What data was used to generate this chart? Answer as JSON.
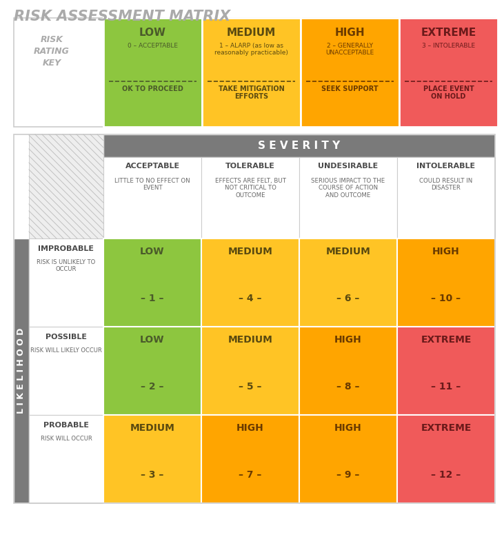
{
  "title": "RISK ASSESSMENT MATRIX",
  "title_color": "#aaaaaa",
  "bg_color": "#ffffff",
  "fig_width": 7.31,
  "fig_height": 7.82,
  "rating_key": {
    "labels": [
      "LOW",
      "MEDIUM",
      "HIGH",
      "EXTREME"
    ],
    "subtitles": [
      "0 – ACCEPTABLE",
      "1 – ALARP (as low as\nreasonably practicable)",
      "2 – GENERALLY\nUNACCEPTABLE",
      "3 – INTOLERABLE"
    ],
    "actions": [
      "OK TO PROCEED",
      "TAKE MITIGATION\nEFFORTS",
      "SEEK SUPPORT",
      "PLACE EVENT\nON HOLD"
    ],
    "colors": [
      "#8DC63F",
      "#FFC425",
      "#FFA500",
      "#F05A5A"
    ],
    "text_colors": [
      "#4a5a2a",
      "#5a4a10",
      "#6a3a00",
      "#6a1a1a"
    ]
  },
  "severity_cols": [
    "ACCEPTABLE",
    "TOLERABLE",
    "UNDESIRABLE",
    "INTOLERABLE"
  ],
  "severity_subtitles": [
    "LITTLE TO NO EFFECT ON\nEVENT",
    "EFFECTS ARE FELT, BUT\nNOT CRITICAL TO\nOUTCOME",
    "SERIOUS IMPACT TO THE\nCOURSE OF ACTION\nAND OUTCOME",
    "COULD RESULT IN\nDISASTER"
  ],
  "likelihood_rows": [
    {
      "label": "IMPROBABLE",
      "sublabel": "RISK IS UNLIKELY TO\nOCCUR"
    },
    {
      "label": "POSSIBLE",
      "sublabel": "RISK WILL LIKELY OCCUR"
    },
    {
      "label": "PROBABLE",
      "sublabel": "RISK WILL OCCUR"
    }
  ],
  "matrix": [
    [
      [
        "LOW",
        "– 1 –",
        "#8DC63F"
      ],
      [
        "MEDIUM",
        "– 4 –",
        "#FFC425"
      ],
      [
        "MEDIUM",
        "– 6 –",
        "#FFC425"
      ],
      [
        "HIGH",
        "– 10 –",
        "#FFA500"
      ]
    ],
    [
      [
        "LOW",
        "– 2 –",
        "#8DC63F"
      ],
      [
        "MEDIUM",
        "– 5 –",
        "#FFC425"
      ],
      [
        "HIGH",
        "– 8 –",
        "#FFA500"
      ],
      [
        "EXTREME",
        "– 11 –",
        "#F05A5A"
      ]
    ],
    [
      [
        "MEDIUM",
        "– 3 –",
        "#FFC425"
      ],
      [
        "HIGH",
        "– 7 –",
        "#FFA500"
      ],
      [
        "HIGH",
        "– 9 –",
        "#FFA500"
      ],
      [
        "EXTREME",
        "– 12 –",
        "#F05A5A"
      ]
    ]
  ],
  "cell_text_colors": {
    "#8DC63F": "#4a5a2a",
    "#FFC425": "#5a4a10",
    "#FFA500": "#6a3a00",
    "#F05A5A": "#6a1a1a"
  },
  "header_gray": "#7a7a7a",
  "border_color": "#cccccc",
  "label_gray": "#aaaaaa",
  "cell_border": "white"
}
